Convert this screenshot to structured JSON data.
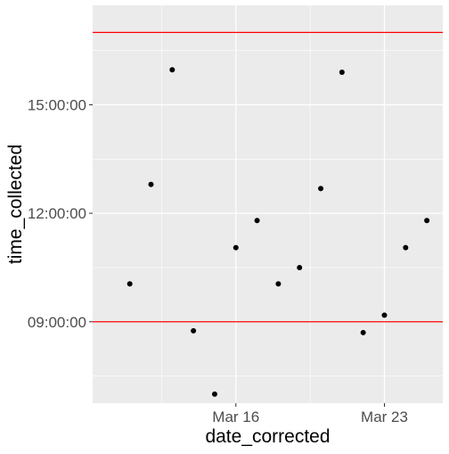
{
  "chart_data": {
    "type": "scatter",
    "xlabel": "date_corrected",
    "ylabel": "time_collected",
    "x_ticks": [
      "Mar 16",
      "Mar 23"
    ],
    "y_ticks": [
      "09:00:00",
      "12:00:00",
      "15:00:00"
    ],
    "x_range": [
      "2020-03-10",
      "2020-03-25"
    ],
    "y_range": [
      "06:45:00",
      "17:45:00"
    ],
    "grid": true,
    "points": [
      {
        "x": "2020-03-11",
        "y": "10:03:00"
      },
      {
        "x": "2020-03-12",
        "y": "12:48:00"
      },
      {
        "x": "2020-03-13",
        "y": "15:58:00"
      },
      {
        "x": "2020-03-14",
        "y": "08:45:00"
      },
      {
        "x": "2020-03-15",
        "y": "07:00:00"
      },
      {
        "x": "2020-03-16",
        "y": "11:03:00"
      },
      {
        "x": "2020-03-17",
        "y": "11:48:00"
      },
      {
        "x": "2020-03-18",
        "y": "10:03:00"
      },
      {
        "x": "2020-03-19",
        "y": "10:30:00"
      },
      {
        "x": "2020-03-20",
        "y": "12:41:00"
      },
      {
        "x": "2020-03-21",
        "y": "15:54:00"
      },
      {
        "x": "2020-03-22",
        "y": "08:42:00"
      },
      {
        "x": "2020-03-23",
        "y": "09:11:00"
      },
      {
        "x": "2020-03-24",
        "y": "11:03:00"
      },
      {
        "x": "2020-03-25",
        "y": "11:48:00"
      }
    ],
    "hlines": [
      {
        "y": "09:00:00",
        "color": "#ff0000"
      },
      {
        "y": "17:00:00",
        "color": "#ff0000"
      }
    ],
    "colors": {
      "panel": "#ebebeb",
      "grid": "#ffffff",
      "point": "#000000",
      "axis_text": "#4d4d4d",
      "title_text": "#000000"
    }
  }
}
